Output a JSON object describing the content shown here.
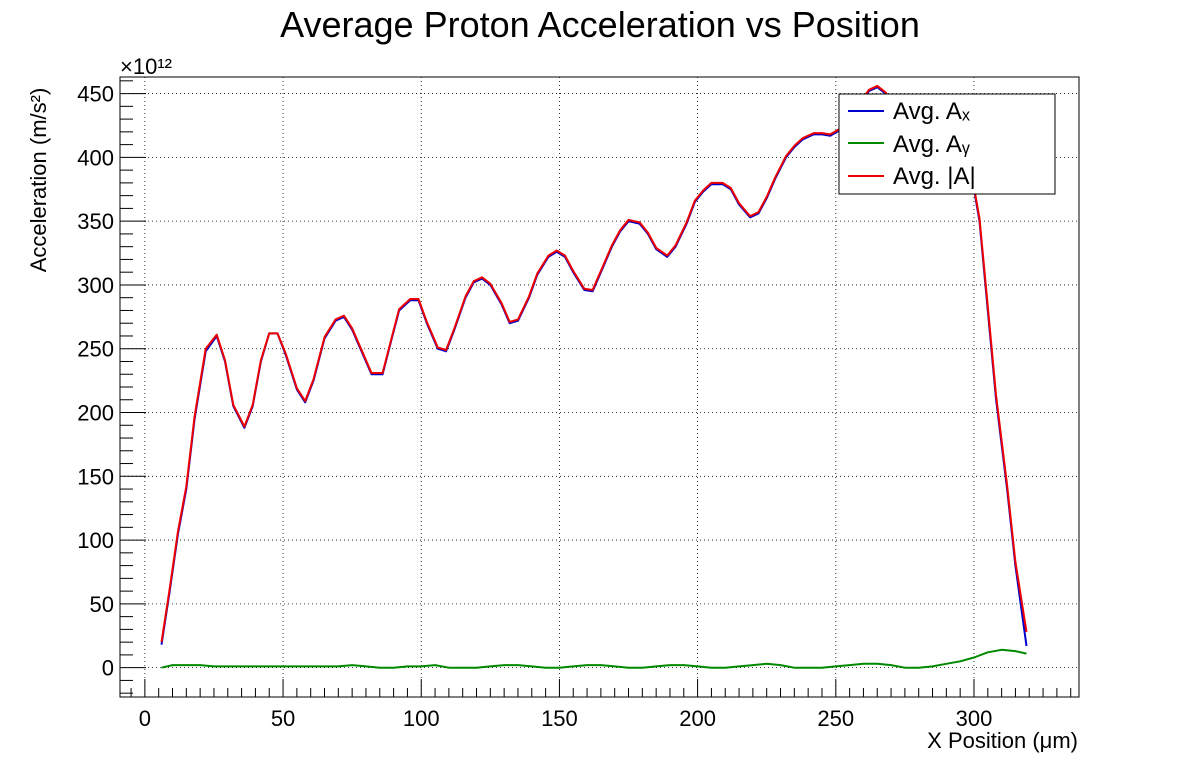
{
  "chart_data": {
    "type": "line",
    "title": "Average Proton Acceleration vs Position",
    "xlabel": "X Position (μm)",
    "ylabel": "Acceleration (m/s²)",
    "y_multiplier": "×10¹²",
    "xlim": [
      -9,
      338
    ],
    "ylim": [
      -23,
      463
    ],
    "x_ticks": [
      0,
      50,
      100,
      150,
      200,
      250,
      300
    ],
    "y_ticks": [
      0,
      50,
      100,
      150,
      200,
      250,
      300,
      350,
      400,
      450
    ],
    "grid": true,
    "legend_position": "top-right",
    "legend": [
      "Avg. Aₓ",
      "Avg. Aᵧ",
      "Avg. |A|"
    ],
    "series": [
      {
        "name": "Avg. Aₓ",
        "color": "#0000cc",
        "x": [
          6,
          9,
          12,
          15,
          18,
          22,
          26,
          29,
          32,
          36,
          39,
          42,
          45,
          48,
          51,
          55,
          58,
          61,
          65,
          69,
          72,
          75,
          79,
          82,
          86,
          89,
          92,
          96,
          99,
          102,
          106,
          109,
          112,
          116,
          119,
          122,
          125,
          129,
          132,
          135,
          139,
          142,
          146,
          149,
          152,
          155,
          159,
          162,
          165,
          169,
          172,
          175,
          179,
          182,
          185,
          189,
          192,
          196,
          199,
          202,
          205,
          209,
          212,
          215,
          219,
          222,
          225,
          228,
          232,
          235,
          238,
          242,
          245,
          248,
          252,
          255,
          258,
          262,
          265,
          268,
          272,
          275,
          278,
          282,
          285,
          288,
          292,
          295,
          298,
          302,
          305,
          308,
          312,
          315,
          319
        ],
        "y": [
          18,
          60,
          105,
          140,
          195,
          248,
          260,
          240,
          205,
          188,
          205,
          240,
          262,
          262,
          245,
          218,
          208,
          225,
          258,
          272,
          275,
          265,
          245,
          230,
          230,
          255,
          280,
          288,
          288,
          270,
          250,
          248,
          265,
          290,
          302,
          305,
          300,
          285,
          270,
          272,
          290,
          308,
          322,
          326,
          322,
          310,
          296,
          295,
          310,
          330,
          342,
          350,
          348,
          340,
          328,
          322,
          330,
          348,
          365,
          373,
          379,
          379,
          375,
          363,
          353,
          356,
          368,
          383,
          400,
          408,
          414,
          418,
          418,
          417,
          422,
          430,
          440,
          452,
          455,
          450,
          438,
          428,
          422,
          418,
          415,
          418,
          420,
          415,
          400,
          350,
          280,
          210,
          140,
          80,
          17
        ]
      },
      {
        "name": "Avg. Aᵧ",
        "color": "#008800",
        "x": [
          6,
          10,
          15,
          20,
          25,
          30,
          35,
          40,
          45,
          50,
          55,
          60,
          65,
          70,
          75,
          80,
          85,
          90,
          95,
          100,
          105,
          110,
          115,
          120,
          125,
          130,
          135,
          140,
          145,
          150,
          155,
          160,
          165,
          170,
          175,
          180,
          185,
          190,
          195,
          200,
          205,
          210,
          215,
          220,
          225,
          230,
          235,
          240,
          245,
          250,
          255,
          260,
          265,
          270,
          275,
          280,
          285,
          290,
          295,
          300,
          305,
          310,
          315,
          319
        ],
        "y": [
          0,
          2,
          2,
          2,
          1,
          1,
          1,
          1,
          1,
          1,
          1,
          1,
          1,
          1,
          2,
          1,
          0,
          0,
          1,
          1,
          2,
          0,
          0,
          0,
          1,
          2,
          2,
          1,
          0,
          0,
          1,
          2,
          2,
          1,
          0,
          0,
          1,
          2,
          2,
          1,
          0,
          0,
          1,
          2,
          3,
          2,
          0,
          0,
          0,
          1,
          2,
          3,
          3,
          2,
          0,
          0,
          1,
          3,
          5,
          8,
          12,
          14,
          13,
          11
        ]
      },
      {
        "name": "Avg. |A|",
        "color": "#ee0000",
        "x": [
          6,
          9,
          12,
          15,
          18,
          22,
          26,
          29,
          32,
          36,
          39,
          42,
          45,
          48,
          51,
          55,
          58,
          61,
          65,
          69,
          72,
          75,
          79,
          82,
          86,
          89,
          92,
          96,
          99,
          102,
          106,
          109,
          112,
          116,
          119,
          122,
          125,
          129,
          132,
          135,
          139,
          142,
          146,
          149,
          152,
          155,
          159,
          162,
          165,
          169,
          172,
          175,
          179,
          182,
          185,
          189,
          192,
          196,
          199,
          202,
          205,
          209,
          212,
          215,
          219,
          222,
          225,
          228,
          232,
          235,
          238,
          242,
          245,
          248,
          252,
          255,
          258,
          262,
          265,
          268,
          272,
          275,
          278,
          282,
          285,
          288,
          292,
          295,
          298,
          302,
          305,
          308,
          312,
          315,
          319
        ],
        "y": [
          20,
          62,
          107,
          142,
          197,
          250,
          261,
          241,
          206,
          189,
          206,
          241,
          262,
          262,
          246,
          219,
          209,
          226,
          259,
          273,
          276,
          266,
          246,
          231,
          231,
          256,
          281,
          289,
          289,
          271,
          251,
          249,
          266,
          291,
          303,
          306,
          301,
          286,
          271,
          273,
          291,
          309,
          323,
          327,
          323,
          311,
          297,
          296,
          311,
          331,
          343,
          351,
          349,
          341,
          329,
          323,
          331,
          349,
          366,
          374,
          380,
          380,
          376,
          364,
          354,
          357,
          369,
          384,
          401,
          409,
          415,
          419,
          419,
          418,
          423,
          431,
          441,
          453,
          456,
          451,
          439,
          429,
          423,
          419,
          416,
          419,
          421,
          416,
          401,
          352,
          283,
          213,
          143,
          83,
          28
        ]
      }
    ]
  }
}
